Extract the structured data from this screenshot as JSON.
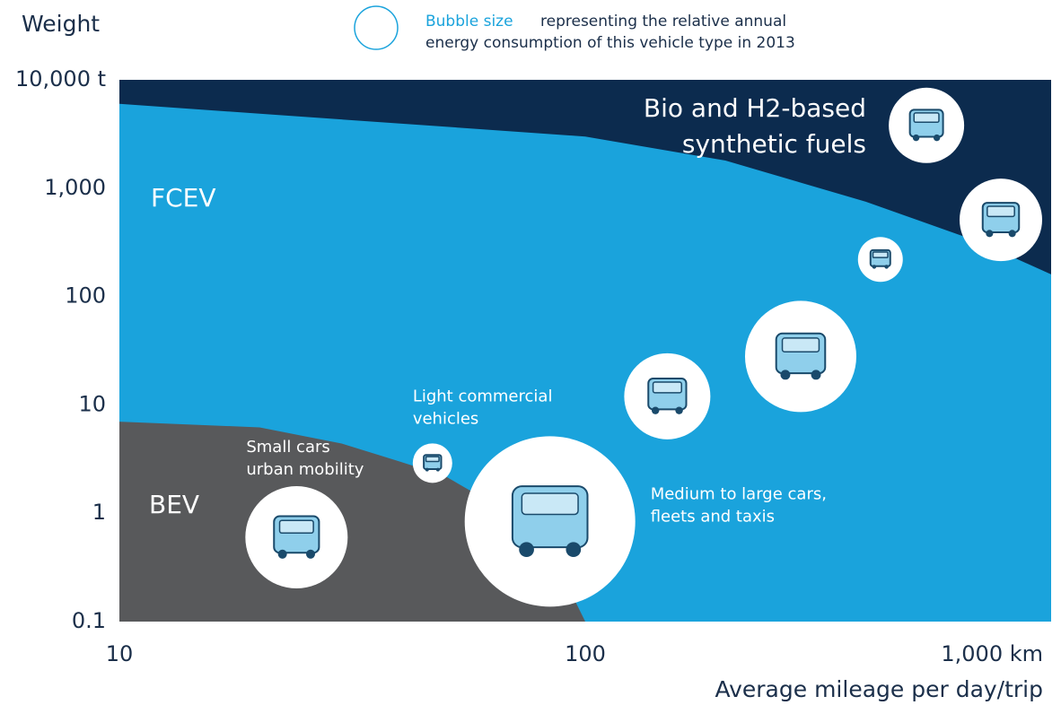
{
  "chart_data": {
    "type": "bubble",
    "y_label": "Weight",
    "x_label": "Average mileage per day/trip",
    "log_x": true,
    "log_y": true,
    "xlim": [
      10,
      1000
    ],
    "ylim": [
      0.1,
      10000
    ],
    "xticks": [
      10,
      100,
      {
        "value": 1000,
        "label": "1,000 km"
      }
    ],
    "yticks": [
      {
        "value": 10000,
        "label": "10,000 t"
      },
      {
        "value": 1000,
        "label": "1,000"
      },
      100,
      10,
      1,
      0.1
    ],
    "legend": {
      "title": "Bubble size",
      "text": [
        "representing the relative annual",
        "energy consumption of this vehicle type in 2013"
      ],
      "color": "#1aa3dc"
    },
    "regions": [
      {
        "label": [
          "Bio and H2-based",
          "synthetic fuels"
        ],
        "color": "#0c2b4e"
      },
      {
        "label": [
          "FCEV"
        ],
        "color": "#1aa3dc",
        "x": [
          10,
          100,
          200,
          400,
          700,
          1000
        ],
        "values": [
          6000,
          3000,
          1800,
          750,
          320,
          160
        ]
      },
      {
        "label": [
          "BEV"
        ],
        "color": "#58595b",
        "x": [
          10,
          20,
          30,
          40,
          50,
          60,
          70,
          80,
          90,
          100
        ],
        "values": [
          7,
          6.2,
          4.4,
          3,
          2.2,
          1.4,
          0.87,
          0.5,
          0.25,
          0.1
        ]
      }
    ],
    "bubbles": {
      "x": [
        24,
        47,
        84,
        150,
        290,
        430,
        540,
        780
      ],
      "values": [
        0.6,
        2.9,
        0.84,
        12,
        28,
        220,
        3800,
        510
      ],
      "sizes": [
        57,
        22,
        95,
        48,
        62,
        25,
        42,
        46
      ],
      "labels": [
        [
          "Small cars",
          "urban mobility"
        ],
        [
          "Light commercial",
          "vehicles"
        ],
        [
          "Medium to large cars,",
          "fleets and taxis"
        ],
        null,
        null,
        null,
        null,
        null
      ],
      "color": "#ffffff"
    }
  }
}
